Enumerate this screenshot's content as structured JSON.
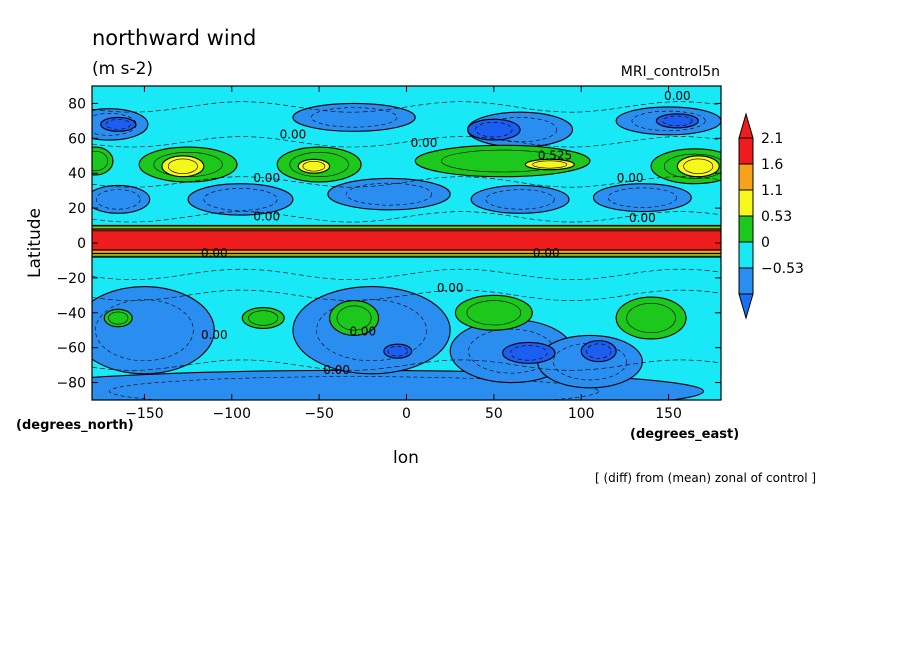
{
  "chart_data": {
    "type": "heatmap",
    "title": "northward wind",
    "units": "(m s-2)",
    "dataset": "MRI_control5n",
    "xlabel": "lon",
    "ylabel": "Latitude",
    "x_units": "(degrees_east)",
    "y_units": "(degrees_north)",
    "note": "[ (diff) from (mean) zonal of control ]",
    "xlim": [
      -180,
      180
    ],
    "ylim": [
      -90,
      90
    ],
    "x_ticks": [
      {
        "value": -150,
        "label": "−150"
      },
      {
        "value": -100,
        "label": "−100"
      },
      {
        "value": -50,
        "label": "−50"
      },
      {
        "value": 0,
        "label": "0"
      },
      {
        "value": 50,
        "label": "50"
      },
      {
        "value": 100,
        "label": "100"
      },
      {
        "value": 150,
        "label": "150"
      }
    ],
    "y_ticks": [
      {
        "value": 80,
        "label": "80"
      },
      {
        "value": 60,
        "label": "60"
      },
      {
        "value": 40,
        "label": "40"
      },
      {
        "value": 20,
        "label": "20"
      },
      {
        "value": 0,
        "label": "0"
      },
      {
        "value": -20,
        "label": "−20"
      },
      {
        "value": -40,
        "label": "−40"
      },
      {
        "value": -60,
        "label": "−60"
      },
      {
        "value": -80,
        "label": "−80"
      }
    ],
    "colorbar": {
      "levels": [
        {
          "label": "2.1",
          "color": "#ee1c1c"
        },
        {
          "label": "1.6",
          "color": "#f7a21b"
        },
        {
          "label": "1.1",
          "color": "#f7f71b"
        },
        {
          "label": "0.53",
          "color": "#1bc81b"
        },
        {
          "label": "0",
          "color": "#19e8f7"
        },
        {
          "label": "−0.53",
          "color": "#2a8ef0"
        }
      ],
      "over_color": "#ee1c1c",
      "under_color": "#1b6ef5"
    },
    "colors": {
      "background": "#19e8f7",
      "negative": "#2a8ef0",
      "strong_negative": "#1b5ef0",
      "positive": "#1bc81b",
      "high": "#f7f71b",
      "higher": "#f7a21b",
      "max": "#ee1c1c"
    },
    "regions": [
      {
        "level": "negative",
        "lon": -170,
        "lat": 68,
        "rlon": 22,
        "rlat": 9
      },
      {
        "level": "negative",
        "lon": -30,
        "lat": 72,
        "rlon": 35,
        "rlat": 8
      },
      {
        "level": "negative",
        "lon": 65,
        "lat": 65,
        "rlon": 30,
        "rlat": 10
      },
      {
        "level": "negative",
        "lon": 150,
        "lat": 70,
        "rlon": 30,
        "rlat": 8
      },
      {
        "level": "strong_negative",
        "lon": -165,
        "lat": 68,
        "rlon": 10,
        "rlat": 4
      },
      {
        "level": "strong_negative",
        "lon": 50,
        "lat": 65,
        "rlon": 15,
        "rlat": 6
      },
      {
        "level": "strong_negative",
        "lon": 155,
        "lat": 70,
        "rlon": 12,
        "rlat": 4
      },
      {
        "level": "negative",
        "lon": -165,
        "lat": 25,
        "rlon": 18,
        "rlat": 8
      },
      {
        "level": "negative",
        "lon": -95,
        "lat": 25,
        "rlon": 30,
        "rlat": 9
      },
      {
        "level": "negative",
        "lon": -10,
        "lat": 28,
        "rlon": 35,
        "rlat": 9
      },
      {
        "level": "negative",
        "lon": 65,
        "lat": 25,
        "rlon": 28,
        "rlat": 8
      },
      {
        "level": "negative",
        "lon": 135,
        "lat": 26,
        "rlon": 28,
        "rlat": 8
      },
      {
        "level": "positive",
        "lon": -125,
        "lat": 45,
        "rlon": 28,
        "rlat": 10
      },
      {
        "level": "positive",
        "lon": -50,
        "lat": 45,
        "rlon": 24,
        "rlat": 10
      },
      {
        "level": "positive",
        "lon": 55,
        "lat": 47,
        "rlon": 50,
        "rlat": 9
      },
      {
        "level": "positive",
        "lon": 165,
        "lat": 44,
        "rlon": 25,
        "rlat": 10
      },
      {
        "level": "positive",
        "lon": -178,
        "lat": 47,
        "rlon": 10,
        "rlat": 8
      },
      {
        "level": "high",
        "lon": -128,
        "lat": 44,
        "rlon": 12,
        "rlat": 6
      },
      {
        "level": "high",
        "lon": -53,
        "lat": 44,
        "rlon": 9,
        "rlat": 4
      },
      {
        "level": "high",
        "lon": 167,
        "lat": 44,
        "rlon": 12,
        "rlat": 6
      },
      {
        "level": "high",
        "lon": 82,
        "lat": 45,
        "rlon": 14,
        "rlat": 3
      },
      {
        "level": "negative",
        "lon": -30,
        "lat": -85,
        "rlon": 200,
        "rlat": 12
      },
      {
        "level": "negative",
        "lon": -150,
        "lat": -50,
        "rlon": 40,
        "rlat": 25
      },
      {
        "level": "negative",
        "lon": -20,
        "lat": -50,
        "rlon": 45,
        "rlat": 25
      },
      {
        "level": "negative",
        "lon": 60,
        "lat": -62,
        "rlon": 35,
        "rlat": 18
      },
      {
        "level": "negative",
        "lon": 105,
        "lat": -68,
        "rlon": 30,
        "rlat": 15
      },
      {
        "level": "strong_negative",
        "lon": 70,
        "lat": -63,
        "rlon": 15,
        "rlat": 6
      },
      {
        "level": "strong_negative",
        "lon": 110,
        "lat": -62,
        "rlon": 10,
        "rlat": 6
      },
      {
        "level": "strong_negative",
        "lon": -5,
        "lat": -62,
        "rlon": 8,
        "rlat": 4
      },
      {
        "level": "positive",
        "lon": -165,
        "lat": -43,
        "rlon": 8,
        "rlat": 5
      },
      {
        "level": "positive",
        "lon": -82,
        "lat": -43,
        "rlon": 12,
        "rlat": 6
      },
      {
        "level": "positive",
        "lon": 50,
        "lat": -40,
        "rlon": 22,
        "rlat": 10
      },
      {
        "level": "positive",
        "lon": 140,
        "lat": -43,
        "rlon": 20,
        "rlat": 12
      },
      {
        "level": "positive",
        "lon": -30,
        "lat": -43,
        "rlon": 14,
        "rlat": 10
      }
    ],
    "equatorial_band": {
      "lat_min": -8,
      "lat_max": 10,
      "core_min": -4,
      "core_max": 7
    },
    "contour_labels": [
      {
        "lon": -65,
        "lat": 60,
        "text": "0.00"
      },
      {
        "lon": 10,
        "lat": 55,
        "text": "0.00"
      },
      {
        "lon": 85,
        "lat": 48,
        "text": "0.525"
      },
      {
        "lon": 155,
        "lat": 82,
        "text": "0.00"
      },
      {
        "lon": -80,
        "lat": 35,
        "text": "0.00"
      },
      {
        "lon": 128,
        "lat": 35,
        "text": "0.00"
      },
      {
        "lon": -80,
        "lat": 13,
        "text": "0.00"
      },
      {
        "lon": 135,
        "lat": 12,
        "text": "0.00"
      },
      {
        "lon": -110,
        "lat": -8,
        "text": "0.00"
      },
      {
        "lon": 80,
        "lat": -8,
        "text": "0.00"
      },
      {
        "lon": 25,
        "lat": -28,
        "text": "0.00"
      },
      {
        "lon": -110,
        "lat": -55,
        "text": "0.00"
      },
      {
        "lon": -25,
        "lat": -53,
        "text": "0.00"
      },
      {
        "lon": -40,
        "lat": -75,
        "text": "0.00"
      }
    ]
  }
}
